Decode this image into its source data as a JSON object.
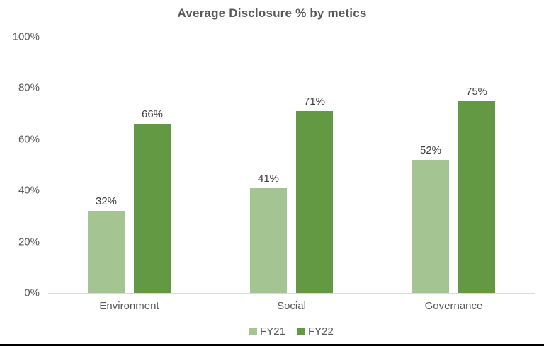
{
  "chart_data": {
    "type": "bar",
    "title": "Average Disclosure % by metics",
    "categories": [
      "Environment",
      "Social",
      "Governance"
    ],
    "series": [
      {
        "name": "FY21",
        "color": "#a4c492",
        "values": [
          32,
          41,
          52
        ]
      },
      {
        "name": "FY22",
        "color": "#629942",
        "values": [
          66,
          71,
          75
        ]
      }
    ],
    "data_labels": [
      [
        "32%",
        "41%",
        "52%"
      ],
      [
        "66%",
        "71%",
        "75%"
      ]
    ],
    "ylim": [
      0,
      100
    ],
    "y_ticks": [
      0,
      20,
      40,
      60,
      80,
      100
    ],
    "y_tick_labels": [
      "0%",
      "20%",
      "40%",
      "60%",
      "80%",
      "100%"
    ],
    "xlabel": "",
    "ylabel": "",
    "grid": false,
    "legend_position": "bottom",
    "colors": {
      "title_text": "#595959",
      "axis_text": "#595959",
      "data_label_text": "#404040",
      "baseline": "#d9d9d9",
      "bottom_border": "#000000",
      "background": "#ffffff"
    }
  }
}
